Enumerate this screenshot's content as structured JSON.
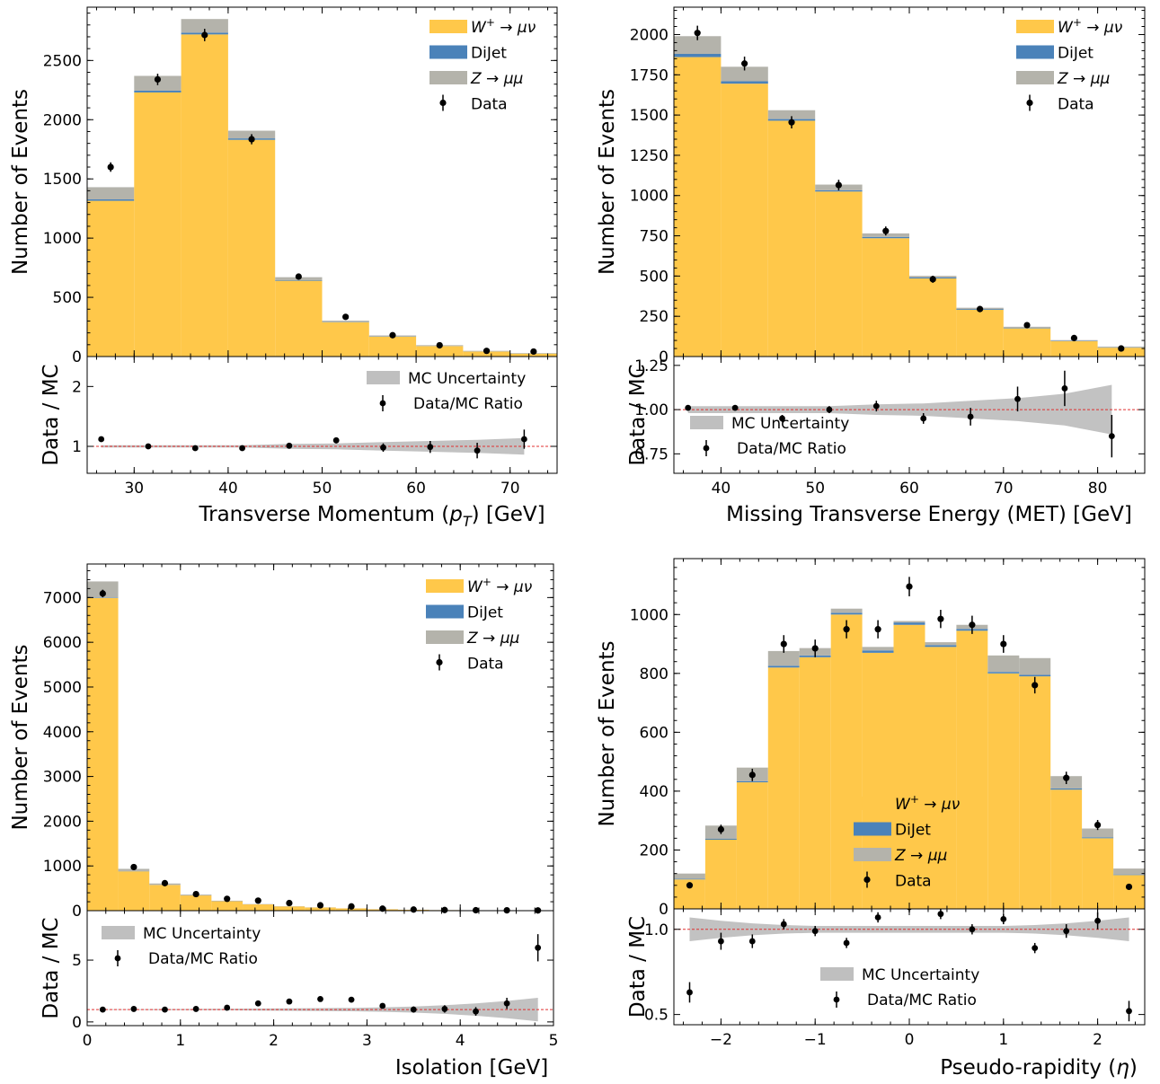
{
  "figure_type": "stacked histogram panels with Data/MC ratio subplots",
  "colors": {
    "w": "#ffc84a",
    "dijet": "#4a82b9",
    "z": "#b4b3ab",
    "data": "#000000",
    "mc_band": "#bfbfbf",
    "ratio_line": "#e03030"
  },
  "chart_data": [
    {
      "type": "bar",
      "stacked": true,
      "xlabel_main": "Transverse Momentum (",
      "xlabel_sym": "p",
      "xlabel_sub": "T",
      "xlabel_tail": ") [GeV]",
      "ylabel": "Number of Events",
      "ratio_ylabel": "Data / MC",
      "xlim": [
        25,
        75
      ],
      "ylim": [
        0,
        2950
      ],
      "xticks": [
        30,
        40,
        50,
        60,
        70
      ],
      "xtick_labels": [
        "30",
        "40",
        "50",
        "60",
        "70"
      ],
      "yticks": [
        0,
        500,
        1000,
        1500,
        2000,
        2500
      ],
      "ytick_labels": [
        "0",
        "500",
        "1000",
        "1500",
        "2000",
        "2500"
      ],
      "ratio_ylim": [
        0.55,
        2.5
      ],
      "ratio_yticks": [
        1,
        2
      ],
      "ratio_ytick_labels": [
        "1",
        "2"
      ],
      "bin_edges": [
        25,
        30,
        35,
        40,
        45,
        50,
        55,
        60,
        65,
        70,
        75
      ],
      "series": [
        {
          "name": "W⁺ → μν",
          "values": [
            1315,
            2230,
            2720,
            1830,
            640,
            290,
            168,
            88,
            42,
            25
          ]
        },
        {
          "name": "DiJet",
          "values": [
            12,
            15,
            15,
            12,
            5,
            3,
            2,
            1,
            1,
            1
          ]
        },
        {
          "name": "Z → μμ",
          "values": [
            103,
            125,
            115,
            65,
            25,
            10,
            8,
            7,
            5,
            3
          ]
        }
      ],
      "data_points": {
        "x": [
          27.5,
          32.5,
          37.5,
          42.5,
          47.5,
          52.5,
          57.5,
          62.5,
          67.5,
          72.5
        ],
        "y": [
          1600,
          2340,
          2715,
          1835,
          675,
          335,
          180,
          95,
          48,
          42
        ],
        "err": [
          40,
          48,
          52,
          43,
          26,
          18,
          13,
          10,
          7,
          6
        ]
      },
      "ratio": {
        "x": [
          26.5,
          31.5,
          36.5,
          41.5,
          46.5,
          51.5,
          56.5,
          61.5,
          66.5,
          71.5
        ],
        "y": [
          1.12,
          1.0,
          0.97,
          0.97,
          1.01,
          1.1,
          0.98,
          0.99,
          0.93,
          1.12
        ],
        "err": [
          0.03,
          0.02,
          0.02,
          0.02,
          0.04,
          0.05,
          0.07,
          0.1,
          0.13,
          0.16
        ],
        "band": [
          0.02,
          0.02,
          0.02,
          0.02,
          0.04,
          0.05,
          0.07,
          0.09,
          0.11,
          0.14
        ]
      },
      "legend_top": "top-right",
      "legend_ratio": "top-right"
    },
    {
      "type": "bar",
      "stacked": true,
      "xlabel": "Missing Transverse Energy (MET) [GeV]",
      "ylabel": "Number of Events",
      "ratio_ylabel": "Data / MC",
      "xlim": [
        35,
        85
      ],
      "ylim": [
        0,
        2170
      ],
      "xticks": [
        40,
        50,
        60,
        70,
        80
      ],
      "xtick_labels": [
        "40",
        "50",
        "60",
        "70",
        "80"
      ],
      "yticks": [
        0,
        250,
        500,
        750,
        1000,
        1250,
        1500,
        1750,
        2000
      ],
      "ytick_labels": [
        "0",
        "250",
        "500",
        "750",
        "1000",
        "1250",
        "1500",
        "1750",
        "2000"
      ],
      "ratio_ylim": [
        0.64,
        1.3
      ],
      "ratio_yticks": [
        0.75,
        1.0,
        1.25
      ],
      "ratio_ytick_labels": [
        "0.75",
        "1.00",
        "1.25"
      ],
      "bin_edges": [
        35,
        40,
        45,
        50,
        55,
        60,
        65,
        70,
        75,
        80,
        85
      ],
      "series": [
        {
          "name": "W⁺ → μν",
          "values": [
            1860,
            1695,
            1465,
            1025,
            735,
            485,
            290,
            175,
            95,
            55
          ]
        },
        {
          "name": "DiJet",
          "values": [
            20,
            15,
            10,
            8,
            8,
            6,
            5,
            3,
            2,
            2
          ]
        },
        {
          "name": "Z → μμ",
          "values": [
            110,
            90,
            55,
            35,
            22,
            10,
            8,
            7,
            5,
            5
          ]
        }
      ],
      "data_points": {
        "x": [
          37.5,
          42.5,
          47.5,
          52.5,
          57.5,
          62.5,
          67.5,
          72.5,
          77.5,
          82.5
        ],
        "y": [
          2010,
          1820,
          1455,
          1065,
          780,
          480,
          295,
          195,
          115,
          50
        ],
        "err": [
          45,
          43,
          38,
          33,
          28,
          22,
          17,
          14,
          11,
          7
        ]
      },
      "ratio": {
        "x": [
          36.5,
          41.5,
          46.5,
          51.5,
          56.5,
          61.5,
          66.5,
          71.5,
          76.5,
          81.5
        ],
        "y": [
          1.01,
          1.01,
          0.95,
          1.0,
          1.02,
          0.95,
          0.96,
          1.06,
          1.12,
          0.85
        ],
        "err": [
          0.01,
          0.01,
          0.02,
          0.02,
          0.03,
          0.03,
          0.05,
          0.07,
          0.1,
          0.12
        ],
        "band": [
          0.02,
          0.02,
          0.02,
          0.02,
          0.03,
          0.035,
          0.05,
          0.065,
          0.09,
          0.14
        ]
      },
      "legend_top": "top-right",
      "legend_ratio": "bottom-left"
    },
    {
      "type": "bar",
      "stacked": true,
      "xlabel": "Isolation [GeV]",
      "ylabel": "Number of Events",
      "ratio_ylabel": "Data / MC",
      "xlim": [
        0,
        5
      ],
      "ylim": [
        0,
        7750
      ],
      "xticks": [
        0,
        1,
        2,
        3,
        4,
        5
      ],
      "xtick_labels": [
        "0",
        "1",
        "2",
        "3",
        "4",
        "5"
      ],
      "yticks": [
        0,
        1000,
        2000,
        3000,
        4000,
        5000,
        6000,
        7000
      ],
      "ytick_labels": [
        "0",
        "1000",
        "2000",
        "3000",
        "4000",
        "5000",
        "6000",
        "7000"
      ],
      "ratio_ylim": [
        -0.3,
        9
      ],
      "ratio_yticks": [
        0,
        5
      ],
      "ratio_ytick_labels": [
        "0",
        "5"
      ],
      "bin_edges": [
        0,
        0.333,
        0.667,
        1.0,
        1.333,
        1.667,
        2.0,
        2.333,
        2.667,
        3.0,
        3.333,
        3.667,
        4.0,
        4.333,
        4.667,
        5.0
      ],
      "series": [
        {
          "name": "W⁺ → μν",
          "values": [
            6990,
            880,
            575,
            340,
            210,
            140,
            95,
            70,
            50,
            30,
            20,
            12,
            8,
            4,
            2
          ]
        },
        {
          "name": "DiJet",
          "values": [
            10,
            5,
            3,
            2,
            1,
            1,
            1,
            0,
            0,
            0,
            0,
            0,
            0,
            0,
            0
          ]
        },
        {
          "name": "Z → μμ",
          "values": [
            360,
            50,
            30,
            18,
            12,
            6,
            4,
            3,
            2,
            2,
            1,
            1,
            1,
            0,
            0
          ]
        }
      ],
      "data_points": {
        "x": [
          0.167,
          0.5,
          0.833,
          1.167,
          1.5,
          1.833,
          2.167,
          2.5,
          2.833,
          3.167,
          3.5,
          3.833,
          4.167,
          4.5,
          4.833
        ],
        "y": [
          7090,
          975,
          615,
          370,
          265,
          225,
          170,
          120,
          95,
          45,
          25,
          15,
          10,
          8,
          5
        ],
        "err": [
          85,
          31,
          25,
          19,
          16,
          15,
          13,
          11,
          10,
          7,
          5,
          4,
          3,
          3,
          2
        ]
      },
      "ratio": {
        "x": [
          0.167,
          0.5,
          0.833,
          1.167,
          1.5,
          1.833,
          2.167,
          2.5,
          2.833,
          3.167,
          3.5,
          3.833,
          4.167,
          4.5,
          4.833
        ],
        "y": [
          1.0,
          1.05,
          1.0,
          1.05,
          1.15,
          1.5,
          1.65,
          1.85,
          1.8,
          1.3,
          1.0,
          1.05,
          0.85,
          1.5,
          6.0
        ],
        "err": [
          0.01,
          0.03,
          0.04,
          0.05,
          0.07,
          0.1,
          0.12,
          0.15,
          0.18,
          0.2,
          0.25,
          0.3,
          0.35,
          0.45,
          1.1
        ],
        "band": [
          0.02,
          0.03,
          0.04,
          0.05,
          0.06,
          0.08,
          0.1,
          0.12,
          0.14,
          0.18,
          0.25,
          0.35,
          0.5,
          0.7,
          0.95
        ]
      },
      "legend_top": "top-right",
      "legend_ratio": "top-left"
    },
    {
      "type": "bar",
      "stacked": true,
      "xlabel_main": "Pseudo-rapidity (",
      "xlabel_sym": "η",
      "xlabel_tail": ")",
      "ylabel": "Number of Events",
      "ratio_ylabel": "Data / MC",
      "xlim": [
        -2.5,
        2.5
      ],
      "ylim": [
        0,
        1190
      ],
      "xticks": [
        -2,
        -1,
        0,
        1,
        2
      ],
      "xtick_labels": [
        "−2",
        "−1",
        "0",
        "1",
        "2"
      ],
      "yticks": [
        0,
        200,
        400,
        600,
        800,
        1000
      ],
      "ytick_labels": [
        "0",
        "200",
        "400",
        "600",
        "800",
        "1000"
      ],
      "ratio_ylim": [
        0.44,
        1.12
      ],
      "ratio_yticks": [
        0.5,
        1.0
      ],
      "ratio_ytick_labels": [
        "0.5",
        "1.0"
      ],
      "bin_edges": [
        -2.5,
        -2.167,
        -1.833,
        -1.5,
        -1.167,
        -0.833,
        -0.5,
        -0.167,
        0.167,
        0.5,
        0.833,
        1.167,
        1.5,
        1.833,
        2.167,
        2.5
      ],
      "series": [
        {
          "name": "W⁺ → μν",
          "values": [
            100,
            235,
            430,
            820,
            855,
            1000,
            870,
            965,
            890,
            945,
            800,
            790,
            405,
            240,
            115
          ]
        },
        {
          "name": "DiJet",
          "values": [
            2,
            3,
            4,
            6,
            6,
            6,
            8,
            8,
            6,
            6,
            5,
            5,
            4,
            3,
            2
          ]
        },
        {
          "name": "Z → μμ",
          "values": [
            18,
            45,
            46,
            50,
            25,
            14,
            12,
            5,
            10,
            14,
            56,
            57,
            42,
            30,
            20
          ]
        }
      ],
      "data_points": {
        "x": [
          -2.333,
          -2.0,
          -1.667,
          -1.333,
          -1.0,
          -0.667,
          -0.333,
          0.0,
          0.333,
          0.667,
          1.0,
          1.333,
          1.667,
          2.0,
          2.333
        ],
        "y": [
          80,
          270,
          455,
          900,
          885,
          950,
          950,
          1095,
          985,
          965,
          900,
          760,
          445,
          285,
          75
        ],
        "err": [
          9,
          16,
          21,
          30,
          30,
          31,
          31,
          33,
          31,
          31,
          30,
          28,
          21,
          17,
          9
        ]
      },
      "ratio": {
        "x": [
          -2.333,
          -2.0,
          -1.667,
          -1.333,
          -1.0,
          -0.667,
          -0.333,
          0.0,
          0.333,
          0.667,
          1.0,
          1.333,
          1.667,
          2.0,
          2.333
        ],
        "y": [
          0.63,
          0.93,
          0.93,
          1.03,
          0.99,
          0.92,
          1.07,
          1.13,
          1.09,
          1.0,
          1.06,
          0.89,
          0.99,
          1.05,
          0.52
        ],
        "err": [
          0.06,
          0.05,
          0.04,
          0.03,
          0.03,
          0.03,
          0.03,
          0.03,
          0.03,
          0.03,
          0.03,
          0.03,
          0.04,
          0.05,
          0.06
        ],
        "band": [
          0.07,
          0.05,
          0.035,
          0.025,
          0.02,
          0.02,
          0.02,
          0.02,
          0.02,
          0.02,
          0.02,
          0.025,
          0.035,
          0.05,
          0.07
        ]
      },
      "legend_top": "center-bottom",
      "legend_ratio": "bottom-center"
    }
  ],
  "legend": {
    "w_prefix": "W",
    "w_sup": "+",
    "w_rest": " → μν",
    "dijet": "DiJet",
    "z": "Z → μμ",
    "data": "Data",
    "mc_unc": "MC Uncertainty",
    "ratio": "Data/MC Ratio"
  }
}
